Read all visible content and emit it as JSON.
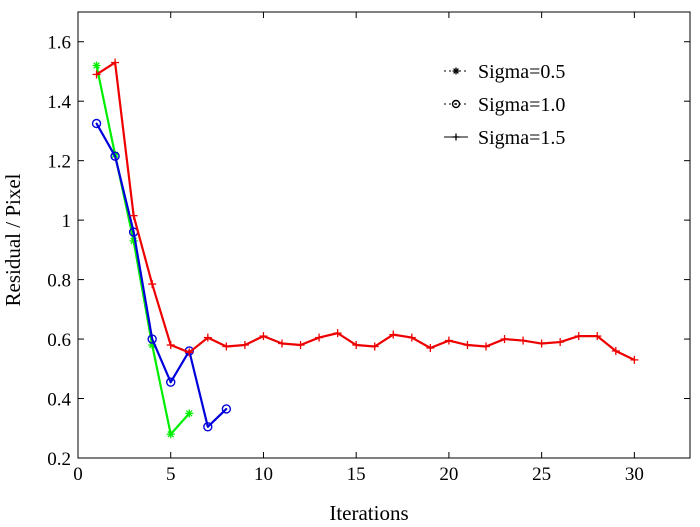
{
  "chart_data": {
    "type": "line",
    "xlabel": "Iterations",
    "ylabel": "Residual / Pixel",
    "xlim": [
      0,
      33
    ],
    "ylim": [
      0.2,
      1.7
    ],
    "xticks": [
      0,
      5,
      10,
      15,
      20,
      25,
      30
    ],
    "xtick_labels": [
      "0",
      "5",
      "10",
      "15",
      "20",
      "25",
      "30"
    ],
    "yticks": [
      0.2,
      0.4,
      0.6,
      0.8,
      1.0,
      1.2,
      1.4,
      1.6
    ],
    "ytick_labels": [
      "0.2",
      "0.4",
      "0.6",
      "0.8",
      "1",
      "1.2",
      "1.4",
      "1.6"
    ],
    "grid": false,
    "legend_position": "top-right",
    "series": [
      {
        "name": "Sigma=0.5",
        "color": "#00ee00",
        "marker": "star",
        "legend_color": "#000000",
        "x": [
          1,
          2,
          3,
          4,
          5,
          6
        ],
        "y": [
          1.52,
          1.22,
          0.93,
          0.58,
          0.28,
          0.35
        ]
      },
      {
        "name": "Sigma=1.0",
        "color": "#0000dd",
        "marker": "circle",
        "legend_color": "#000000",
        "x": [
          1,
          2,
          3,
          4,
          5,
          6,
          7,
          8
        ],
        "y": [
          1.325,
          1.215,
          0.96,
          0.6,
          0.455,
          0.56,
          0.305,
          0.365
        ]
      },
      {
        "name": "Sigma=1.5",
        "color": "#ee0000",
        "marker": "plus",
        "legend_color": "#000000",
        "x": [
          1,
          2,
          3,
          4,
          5,
          6,
          7,
          8,
          9,
          10,
          11,
          12,
          13,
          14,
          15,
          16,
          17,
          18,
          19,
          20,
          21,
          22,
          23,
          24,
          25,
          26,
          27,
          28,
          29,
          30
        ],
        "y": [
          1.49,
          1.53,
          1.015,
          0.785,
          0.58,
          0.555,
          0.605,
          0.575,
          0.58,
          0.61,
          0.585,
          0.58,
          0.605,
          0.62,
          0.58,
          0.575,
          0.615,
          0.605,
          0.57,
          0.595,
          0.58,
          0.575,
          0.6,
          0.595,
          0.585,
          0.59,
          0.61,
          0.61,
          0.56,
          0.53
        ]
      }
    ]
  }
}
